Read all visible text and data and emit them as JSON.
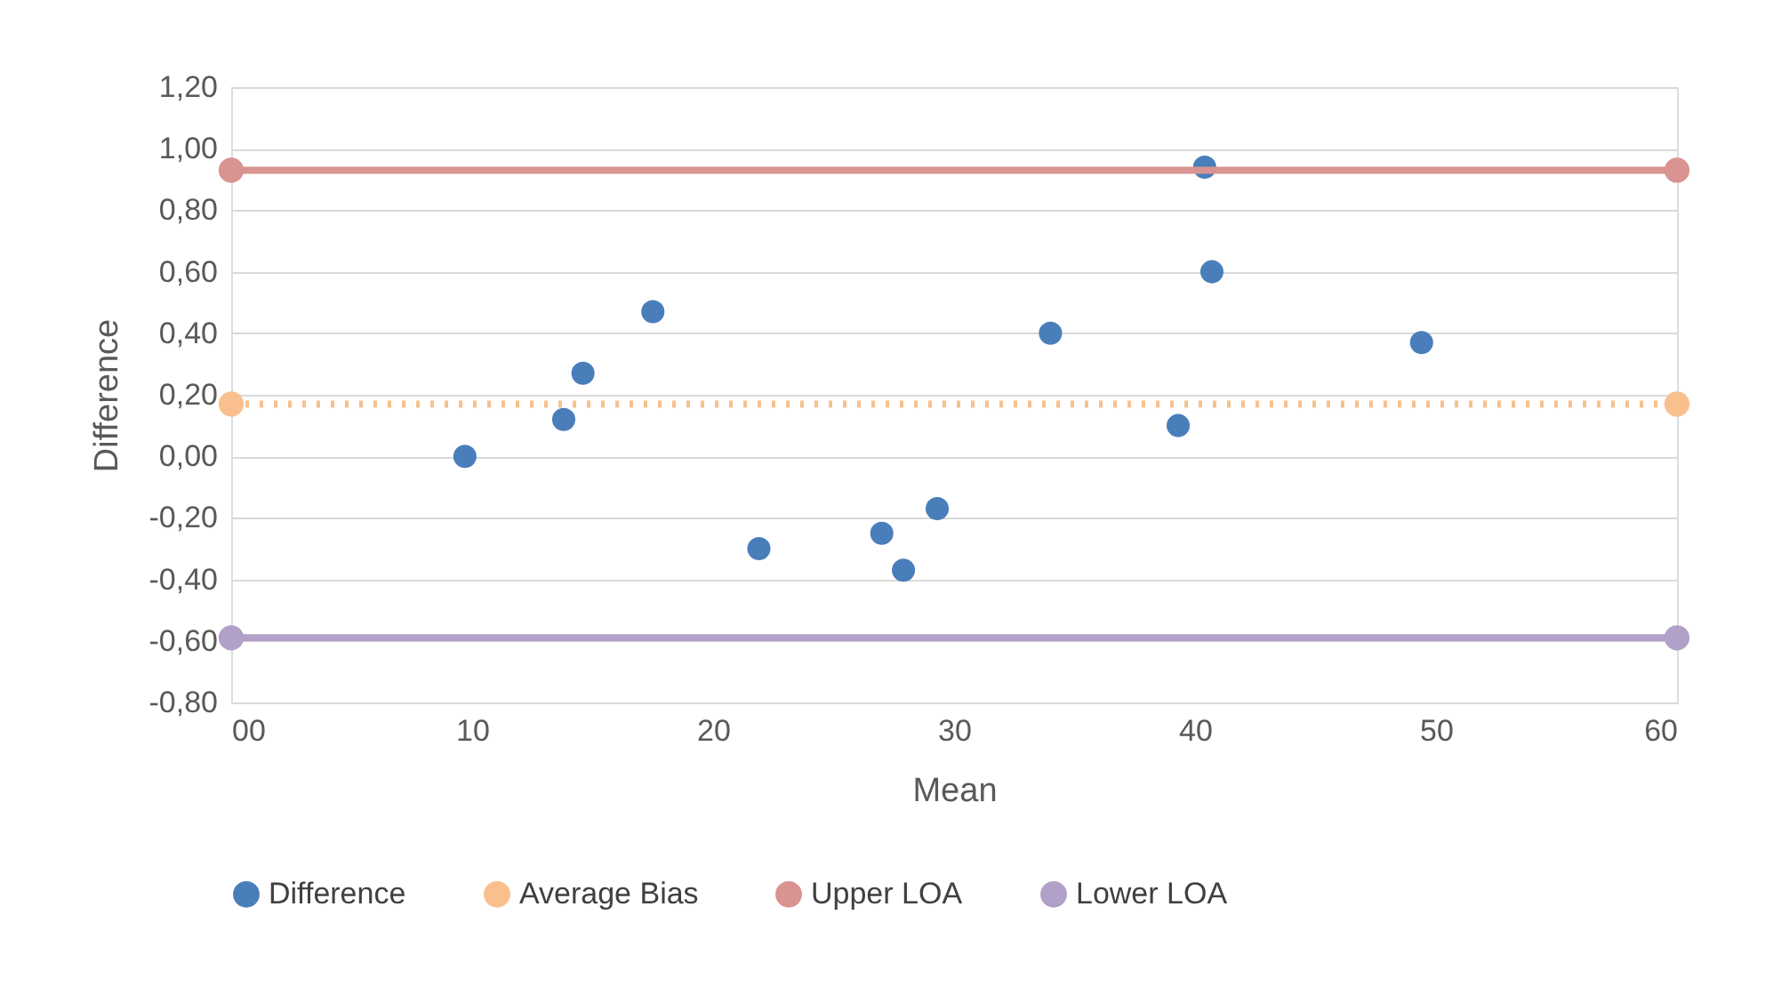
{
  "chart_data": {
    "type": "scatter",
    "xlabel": "Mean",
    "ylabel": "Difference",
    "series": [
      {
        "name": "Difference",
        "color": "#4a7ebb",
        "marker": "circle",
        "x": [
          9.7,
          13.8,
          14.6,
          17.5,
          21.9,
          27.0,
          27.9,
          29.3,
          34.0,
          39.3,
          40.4,
          40.7,
          49.4
        ],
        "values": [
          0.0,
          0.12,
          0.27,
          0.47,
          -0.3,
          -0.25,
          -0.37,
          -0.17,
          0.4,
          0.1,
          0.94,
          0.6,
          0.37
        ]
      },
      {
        "name": "Average Bias",
        "type": "line",
        "line_style": "dotted",
        "marker": "circle",
        "color": "#f9c08e",
        "x": [
          0,
          60
        ],
        "values": [
          0.17,
          0.17
        ]
      },
      {
        "name": "Upper LOA",
        "type": "line",
        "line_style": "solid",
        "marker": "circle",
        "color": "#d99390",
        "x": [
          0,
          60
        ],
        "values": [
          0.93,
          0.93
        ]
      },
      {
        "name": "Lower LOA",
        "type": "line",
        "line_style": "solid",
        "marker": "circle",
        "color": "#b1a0c7",
        "x": [
          0,
          60
        ],
        "values": [
          -0.59,
          -0.59
        ]
      }
    ],
    "xlim": [
      0,
      60
    ],
    "xticks": [
      {
        "value": 0,
        "label": "00"
      },
      10,
      20,
      30,
      40,
      50,
      60
    ],
    "ylim": [
      -0.8,
      1.2
    ],
    "yticks": [
      {
        "value": -0.8,
        "label": "-0,80"
      },
      {
        "value": -0.6,
        "label": "-0,60"
      },
      {
        "value": -0.4,
        "label": "-0,40"
      },
      {
        "value": -0.2,
        "label": "-0,20"
      },
      {
        "value": 0,
        "label": "0,00"
      },
      {
        "value": 0.2,
        "label": "0,20"
      },
      {
        "value": 0.4,
        "label": "0,40"
      },
      {
        "value": 0.6,
        "label": "0,60"
      },
      {
        "value": 0.8,
        "label": "0,80"
      },
      {
        "value": 1.0,
        "label": "1,00"
      },
      {
        "value": 1.2,
        "label": "1,20"
      }
    ],
    "grid": "y",
    "legend": "bottom"
  }
}
